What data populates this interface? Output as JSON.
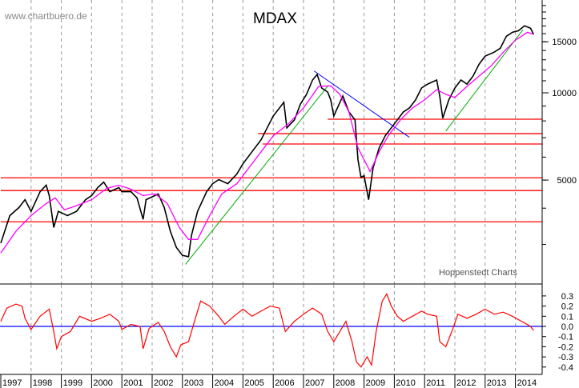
{
  "watermark": "www.chartbuero.de",
  "source": "Hoppenstedt Charts",
  "colors": {
    "price": "#000000",
    "moving_average": "#ff00ff",
    "support_lines": "#ff0000",
    "uptrend": "#00aa00",
    "downtrend": "#0000ff",
    "oscillator": "#ff0000",
    "zero_line": "#0000ff",
    "grid": "#999999"
  },
  "chart_data": [
    {
      "type": "line",
      "title": "MDAX",
      "y_scale": "log",
      "ylim": [
        2190,
        20900
      ],
      "xlim": [
        1997.0,
        2014.75
      ],
      "grid": "vertical dashed at year boundaries",
      "y_ticks": [
        5000,
        10000,
        15000
      ],
      "y_tick_labels": [
        "5000",
        "10000",
        "15000"
      ],
      "series": [
        {
          "role": "price",
          "points": [
            [
              1997.0,
              3030
            ],
            [
              1997.3,
              3770
            ],
            [
              1997.6,
              4020
            ],
            [
              1997.8,
              4280
            ],
            [
              1998.0,
              3900
            ],
            [
              1998.3,
              4560
            ],
            [
              1998.5,
              4800
            ],
            [
              1998.6,
              4420
            ],
            [
              1998.75,
              3430
            ],
            [
              1998.9,
              3900
            ],
            [
              1999.2,
              3770
            ],
            [
              1999.5,
              3900
            ],
            [
              1999.8,
              4280
            ],
            [
              2000.0,
              4420
            ],
            [
              2000.2,
              4710
            ],
            [
              2000.4,
              4920
            ],
            [
              2000.6,
              4560
            ],
            [
              2000.9,
              4710
            ],
            [
              2001.0,
              4560
            ],
            [
              2001.3,
              4560
            ],
            [
              2001.5,
              4340
            ],
            [
              2001.7,
              3660
            ],
            [
              2001.8,
              4280
            ],
            [
              2002.2,
              4480
            ],
            [
              2002.4,
              4020
            ],
            [
              2002.6,
              3330
            ],
            [
              2002.8,
              2930
            ],
            [
              2003.0,
              2750
            ],
            [
              2003.2,
              2720
            ],
            [
              2003.3,
              3220
            ],
            [
              2003.5,
              3900
            ],
            [
              2003.8,
              4560
            ],
            [
              2004.0,
              4860
            ],
            [
              2004.2,
              5020
            ],
            [
              2004.5,
              4860
            ],
            [
              2004.8,
              5250
            ],
            [
              2005.0,
              5690
            ],
            [
              2005.3,
              6260
            ],
            [
              2005.6,
              6890
            ],
            [
              2005.8,
              7570
            ],
            [
              2006.0,
              8320
            ],
            [
              2006.35,
              9270
            ],
            [
              2006.45,
              7570
            ],
            [
              2006.7,
              8070
            ],
            [
              2006.9,
              9150
            ],
            [
              2007.1,
              9880
            ],
            [
              2007.3,
              11070
            ],
            [
              2007.45,
              11570
            ],
            [
              2007.6,
              10390
            ],
            [
              2007.8,
              10060
            ],
            [
              2007.9,
              9450
            ],
            [
              2008.0,
              8320
            ],
            [
              2008.3,
              9750
            ],
            [
              2008.5,
              8590
            ],
            [
              2008.7,
              8070
            ],
            [
              2008.8,
              5880
            ],
            [
              2008.9,
              5110
            ],
            [
              2009.0,
              5180
            ],
            [
              2009.15,
              4280
            ],
            [
              2009.3,
              5520
            ],
            [
              2009.5,
              6460
            ],
            [
              2009.7,
              7110
            ],
            [
              2009.9,
              7570
            ],
            [
              2010.1,
              8070
            ],
            [
              2010.3,
              8590
            ],
            [
              2010.5,
              8870
            ],
            [
              2010.7,
              9450
            ],
            [
              2010.9,
              10390
            ],
            [
              2011.1,
              10720
            ],
            [
              2011.4,
              11070
            ],
            [
              2011.5,
              9750
            ],
            [
              2011.6,
              8170
            ],
            [
              2011.8,
              9450
            ],
            [
              2012.0,
              10390
            ],
            [
              2012.2,
              11070
            ],
            [
              2012.4,
              10720
            ],
            [
              2012.6,
              11420
            ],
            [
              2012.8,
              12550
            ],
            [
              2013.0,
              13380
            ],
            [
              2013.3,
              13810
            ],
            [
              2013.5,
              14250
            ],
            [
              2013.7,
              15670
            ],
            [
              2013.9,
              16170
            ],
            [
              2014.1,
              16370
            ],
            [
              2014.3,
              17020
            ],
            [
              2014.5,
              16700
            ],
            [
              2014.6,
              15900
            ]
          ]
        },
        {
          "role": "moving_average",
          "points": [
            [
              1997.0,
              2800
            ],
            [
              1997.5,
              3330
            ],
            [
              1998.0,
              3770
            ],
            [
              1998.5,
              4150
            ],
            [
              1998.8,
              4340
            ],
            [
              1999.1,
              3950
            ],
            [
              1999.5,
              4080
            ],
            [
              2000.0,
              4280
            ],
            [
              2000.5,
              4680
            ],
            [
              2000.9,
              4800
            ],
            [
              2001.3,
              4650
            ],
            [
              2001.7,
              4420
            ],
            [
              2002.1,
              4480
            ],
            [
              2002.5,
              4150
            ],
            [
              2002.9,
              3430
            ],
            [
              2003.2,
              3120
            ],
            [
              2003.5,
              3120
            ],
            [
              2003.9,
              3770
            ],
            [
              2004.3,
              4480
            ],
            [
              2004.8,
              4860
            ],
            [
              2005.2,
              5520
            ],
            [
              2005.6,
              6260
            ],
            [
              2006.0,
              7110
            ],
            [
              2006.5,
              7810
            ],
            [
              2007.0,
              8870
            ],
            [
              2007.5,
              10520
            ],
            [
              2007.9,
              10570
            ],
            [
              2008.2,
              9880
            ],
            [
              2008.5,
              8590
            ],
            [
              2008.8,
              6460
            ],
            [
              2009.2,
              5350
            ],
            [
              2009.5,
              6260
            ],
            [
              2009.8,
              7110
            ],
            [
              2010.2,
              8070
            ],
            [
              2010.6,
              8870
            ],
            [
              2011.0,
              9450
            ],
            [
              2011.4,
              10260
            ],
            [
              2011.7,
              9880
            ],
            [
              2012.0,
              9630
            ],
            [
              2012.4,
              10520
            ],
            [
              2012.8,
              11420
            ],
            [
              2013.2,
              12400
            ],
            [
              2013.6,
              13810
            ],
            [
              2014.0,
              15190
            ],
            [
              2014.4,
              16170
            ],
            [
              2014.6,
              15900
            ]
          ]
        }
      ],
      "horizontal_lines": [
        {
          "value": 8110,
          "from": 2007.8
        },
        {
          "value": 7230,
          "from": 2005.5
        },
        {
          "value": 6660,
          "from": 2005.65
        },
        {
          "value": 5090,
          "from": 1997.0
        },
        {
          "value": 4600,
          "from": 1997.0
        },
        {
          "value": 3590,
          "from": 1997.0
        }
      ],
      "trend_lines": [
        {
          "role": "uptrend",
          "from": [
            2003.1,
            2560
          ],
          "to": [
            2007.8,
            10540
          ]
        },
        {
          "role": "uptrend",
          "from": [
            2011.7,
            7380
          ],
          "to": [
            2014.25,
            16500
          ]
        },
        {
          "role": "downtrend",
          "from": [
            2007.35,
            11890
          ],
          "to": [
            2010.5,
            7020
          ]
        }
      ]
    },
    {
      "type": "line",
      "role": "oscillator",
      "ylim": [
        -0.45,
        0.42
      ],
      "y_ticks": [
        0.3,
        0.2,
        0.1,
        0.0,
        -0.1,
        -0.2,
        -0.3,
        -0.4
      ],
      "y_tick_labels": [
        "0.3",
        "0.2",
        "0.1",
        "0.0",
        "-0.1",
        "-0.2",
        "-0.3",
        "-0.4"
      ],
      "zero_line": 0.0,
      "x_tick_labels": [
        "1997",
        "1998",
        "1999",
        "2000",
        "2001",
        "2002",
        "2003",
        "2004",
        "2005",
        "2006",
        "2007",
        "2008",
        "2009",
        "2010",
        "2011",
        "2012",
        "2013",
        "2014"
      ],
      "points": [
        [
          1997.0,
          0.05
        ],
        [
          1997.2,
          0.18
        ],
        [
          1997.5,
          0.22
        ],
        [
          1997.7,
          0.2
        ],
        [
          1997.8,
          0.08
        ],
        [
          1998.0,
          -0.03
        ],
        [
          1998.3,
          0.1
        ],
        [
          1998.6,
          0.17
        ],
        [
          1998.75,
          -0.05
        ],
        [
          1998.85,
          -0.22
        ],
        [
          1999.0,
          -0.1
        ],
        [
          1999.3,
          -0.05
        ],
        [
          1999.6,
          0.1
        ],
        [
          2000.0,
          0.05
        ],
        [
          2000.3,
          0.08
        ],
        [
          2000.6,
          0.12
        ],
        [
          2000.9,
          0.05
        ],
        [
          2001.0,
          -0.03
        ],
        [
          2001.3,
          0.02
        ],
        [
          2001.6,
          0.0
        ],
        [
          2001.7,
          -0.22
        ],
        [
          2001.9,
          -0.02
        ],
        [
          2002.2,
          0.04
        ],
        [
          2002.4,
          -0.05
        ],
        [
          2002.6,
          -0.2
        ],
        [
          2002.8,
          -0.3
        ],
        [
          2002.95,
          -0.18
        ],
        [
          2003.2,
          -0.15
        ],
        [
          2003.4,
          0.05
        ],
        [
          2003.6,
          0.25
        ],
        [
          2003.9,
          0.2
        ],
        [
          2004.2,
          0.1
        ],
        [
          2004.4,
          0.02
        ],
        [
          2004.7,
          0.1
        ],
        [
          2005.0,
          0.17
        ],
        [
          2005.3,
          0.1
        ],
        [
          2005.6,
          0.15
        ],
        [
          2005.9,
          0.2
        ],
        [
          2006.2,
          0.18
        ],
        [
          2006.4,
          -0.05
        ],
        [
          2006.7,
          0.05
        ],
        [
          2007.0,
          0.12
        ],
        [
          2007.3,
          0.18
        ],
        [
          2007.6,
          0.12
        ],
        [
          2007.8,
          -0.05
        ],
        [
          2008.0,
          -0.15
        ],
        [
          2008.2,
          -0.05
        ],
        [
          2008.4,
          0.05
        ],
        [
          2008.6,
          -0.15
        ],
        [
          2008.75,
          -0.35
        ],
        [
          2008.9,
          -0.4
        ],
        [
          2009.1,
          -0.3
        ],
        [
          2009.25,
          -0.38
        ],
        [
          2009.4,
          -0.05
        ],
        [
          2009.6,
          0.25
        ],
        [
          2009.75,
          0.32
        ],
        [
          2009.9,
          0.2
        ],
        [
          2010.1,
          0.1
        ],
        [
          2010.3,
          0.05
        ],
        [
          2010.6,
          0.1
        ],
        [
          2010.9,
          0.15
        ],
        [
          2011.1,
          0.12
        ],
        [
          2011.4,
          0.1
        ],
        [
          2011.5,
          -0.15
        ],
        [
          2011.7,
          -0.2
        ],
        [
          2011.9,
          -0.05
        ],
        [
          2012.1,
          0.12
        ],
        [
          2012.4,
          0.08
        ],
        [
          2012.7,
          0.12
        ],
        [
          2013.0,
          0.17
        ],
        [
          2013.3,
          0.12
        ],
        [
          2013.6,
          0.14
        ],
        [
          2013.9,
          0.1
        ],
        [
          2014.2,
          0.05
        ],
        [
          2014.5,
          0.0
        ],
        [
          2014.6,
          -0.04
        ]
      ]
    }
  ]
}
